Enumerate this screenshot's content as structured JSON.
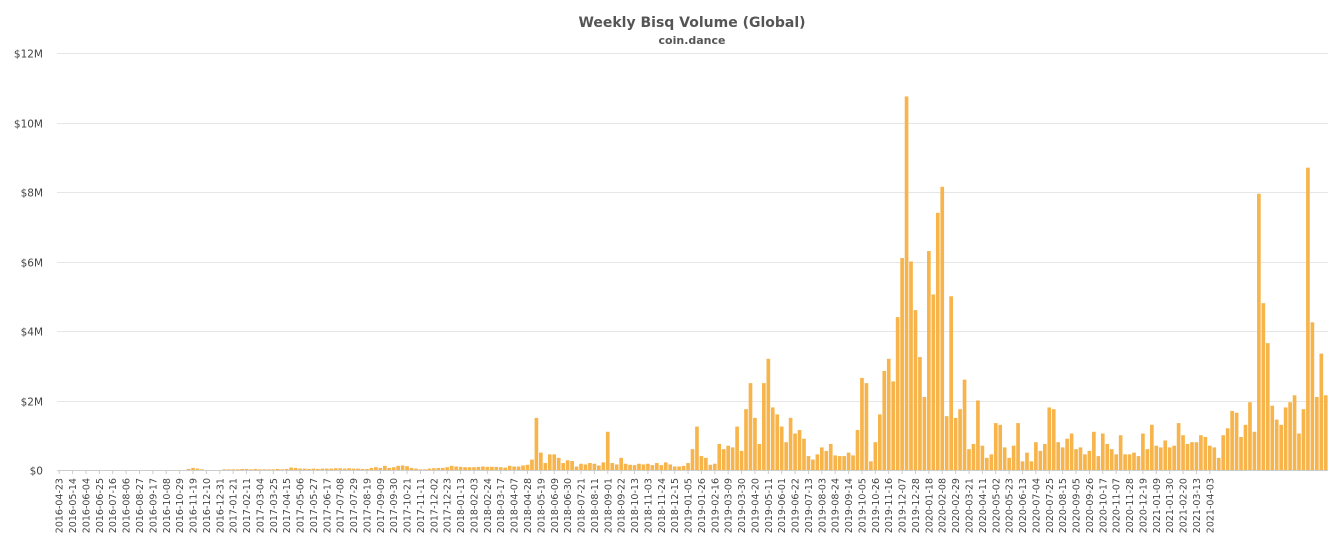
{
  "colors": {
    "bar": "#f7b44b",
    "grid": "#e6e6e6",
    "text": "#555555"
  },
  "chart_data": {
    "type": "bar",
    "title": "Weekly Bisq Volume (Global)",
    "subtitle": "coin.dance",
    "xlabel": "",
    "ylabel": "",
    "ylim": [
      0,
      12000000
    ],
    "y_ticks": [
      0,
      2000000,
      4000000,
      6000000,
      8000000,
      10000000,
      12000000
    ],
    "y_tick_labels": [
      "$0",
      "$2M",
      "$4M",
      "$6M",
      "$8M",
      "$10M",
      "$12M"
    ],
    "grid": true,
    "legend": "none",
    "x_start": "2016-04-23",
    "x_step_days": 7,
    "x_tick_labels": [
      "2016-04-23",
      "2016-05-14",
      "2016-06-04",
      "2016-06-25",
      "2016-07-16",
      "2016-08-06",
      "2016-08-27",
      "2016-09-17",
      "2016-10-08",
      "2016-10-29",
      "2016-11-19",
      "2016-12-10",
      "2016-12-31",
      "2017-01-21",
      "2017-02-11",
      "2017-03-04",
      "2017-03-25",
      "2017-04-15",
      "2017-05-06",
      "2017-05-27",
      "2017-06-17",
      "2017-07-08",
      "2017-07-29",
      "2017-08-19",
      "2017-09-09",
      "2017-09-30",
      "2017-10-21",
      "2017-11-11",
      "2017-12-02",
      "2017-12-23",
      "2018-01-13",
      "2018-02-03",
      "2018-02-24",
      "2018-03-17",
      "2018-04-07",
      "2018-04-28",
      "2018-05-19",
      "2018-06-09",
      "2018-06-30",
      "2018-07-21",
      "2018-08-11",
      "2018-09-01",
      "2018-09-22",
      "2018-10-13",
      "2018-11-03",
      "2018-11-24",
      "2018-12-15",
      "2019-01-05",
      "2019-01-26",
      "2019-02-16",
      "2019-03-09",
      "2019-03-30",
      "2019-04-20",
      "2019-05-11",
      "2019-06-01",
      "2019-06-22",
      "2019-07-13",
      "2019-08-03",
      "2019-08-24",
      "2019-09-14",
      "2019-10-05",
      "2019-10-26",
      "2019-11-16",
      "2019-12-07",
      "2019-12-28",
      "2020-01-18",
      "2020-02-08",
      "2020-02-29",
      "2020-03-21",
      "2020-04-11",
      "2020-05-02",
      "2020-05-23",
      "2020-06-13",
      "2020-07-04",
      "2020-07-25",
      "2020-08-15",
      "2020-09-05",
      "2020-09-26",
      "2020-10-17",
      "2020-11-07",
      "2020-11-28",
      "2020-12-19",
      "2021-01-09",
      "2021-01-30",
      "2021-02-20",
      "2021-03-13",
      "2021-04-03"
    ],
    "values": [
      0,
      0,
      0,
      0,
      0,
      0,
      0,
      0,
      0,
      0,
      0,
      0,
      0,
      0,
      0,
      0,
      0,
      0,
      0,
      0,
      0,
      0,
      0,
      0,
      0,
      0,
      0,
      0,
      0,
      30000,
      60000,
      40000,
      20000,
      0,
      0,
      0,
      0,
      20000,
      20000,
      20000,
      20000,
      30000,
      30000,
      20000,
      30000,
      20000,
      20000,
      20000,
      20000,
      30000,
      20000,
      30000,
      70000,
      60000,
      40000,
      40000,
      30000,
      40000,
      30000,
      40000,
      40000,
      40000,
      50000,
      50000,
      40000,
      50000,
      40000,
      40000,
      30000,
      30000,
      60000,
      80000,
      60000,
      120000,
      60000,
      80000,
      120000,
      130000,
      110000,
      60000,
      40000,
      20000,
      20000,
      40000,
      50000,
      60000,
      60000,
      80000,
      120000,
      100000,
      90000,
      80000,
      80000,
      80000,
      90000,
      100000,
      90000,
      90000,
      90000,
      80000,
      70000,
      120000,
      100000,
      100000,
      130000,
      150000,
      300000,
      1500000,
      500000,
      200000,
      450000,
      450000,
      350000,
      200000,
      280000,
      260000,
      100000,
      180000,
      160000,
      200000,
      180000,
      130000,
      220000,
      1100000,
      200000,
      160000,
      350000,
      180000,
      150000,
      140000,
      180000,
      160000,
      180000,
      140000,
      200000,
      140000,
      220000,
      160000,
      100000,
      100000,
      120000,
      200000,
      600000,
      1250000,
      400000,
      350000,
      150000,
      180000,
      750000,
      600000,
      700000,
      650000,
      1250000,
      550000,
      1750000,
      2500000,
      1500000,
      750000,
      2500000,
      3200000,
      1800000,
      1600000,
      1250000,
      800000,
      1500000,
      1050000,
      1150000,
      900000,
      400000,
      300000,
      450000,
      650000,
      550000,
      750000,
      420000,
      400000,
      400000,
      500000,
      420000,
      1150000,
      2650000,
      2500000,
      250000,
      800000,
      1600000,
      2850000,
      3200000,
      2550000,
      4400000,
      6100000,
      10750000,
      6000000,
      4600000,
      3250000,
      2100000,
      6300000,
      5050000,
      7400000,
      8150000,
      1550000,
      5000000,
      1500000,
      1750000,
      2600000,
      600000,
      750000,
      2000000,
      700000,
      350000,
      450000,
      1350000,
      1300000,
      650000,
      350000,
      700000,
      1350000,
      250000,
      500000,
      250000,
      800000,
      550000,
      750000,
      1800000,
      1750000,
      800000,
      650000,
      900000,
      1050000,
      600000,
      650000,
      450000,
      550000,
      1100000,
      400000,
      1050000,
      750000,
      600000,
      450000,
      1000000,
      450000,
      450000,
      500000,
      400000,
      1050000,
      600000,
      1300000,
      700000,
      650000,
      850000,
      650000,
      700000,
      1350000,
      1000000,
      750000,
      800000,
      800000,
      1000000,
      950000,
      700000,
      650000,
      350000,
      1000000,
      1200000,
      1700000,
      1650000,
      950000,
      1300000,
      1950000,
      1100000,
      7950000,
      4800000,
      3650000,
      1850000,
      1450000,
      1300000,
      1800000,
      1950000,
      2150000,
      1050000,
      1750000,
      8700000,
      4250000,
      2100000,
      3350000,
      2150000
    ]
  }
}
